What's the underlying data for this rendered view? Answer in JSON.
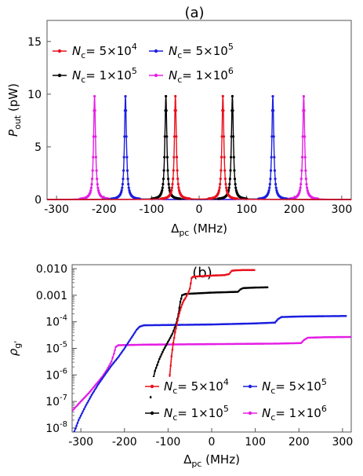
{
  "chart_data": [
    {
      "type": "line",
      "panel_label": "(a)",
      "xlabel": "Δpc (MHz)",
      "xlabel_main": "Δ",
      "xlabel_sub": "pc",
      "xlabel_unit": " (MHz)",
      "ylabel": "Pout (pW)",
      "ylabel_main": "P",
      "ylabel_sub": "out",
      "ylabel_unit": " (pW)",
      "xlim": [
        -320,
        320
      ],
      "ylim": [
        0,
        17
      ],
      "xticks": [
        "-300",
        "-200",
        "-100",
        "0",
        "100",
        "200",
        "300"
      ],
      "xtick_values": [
        -300,
        -200,
        -100,
        0,
        100,
        200,
        300
      ],
      "yticks": [
        "0",
        "5",
        "10",
        "15"
      ],
      "ytick_values": [
        0,
        5,
        10,
        15
      ],
      "peak_height": 9.8,
      "series": [
        {
          "name": "Nc= 5×10^4",
          "legend": {
            "pre": "N",
            "sub": "c",
            "eq": "= 5×10",
            "sup": "4"
          },
          "color": "#e8101c",
          "peaks": [
            -50,
            50
          ],
          "width": 5
        },
        {
          "name": "Nc= 5×10^5",
          "legend": {
            "pre": "N",
            "sub": "c",
            "eq": "= 5×10",
            "sup": "5"
          },
          "color": "#1b1fe0",
          "peaks": [
            -155,
            155
          ],
          "width": 5
        },
        {
          "name": "Nc= 1×10^5",
          "legend": {
            "pre": "N",
            "sub": "c",
            "eq": "= 1×10",
            "sup": "5"
          },
          "color": "#000000",
          "peaks": [
            -70,
            70
          ],
          "width": 5
        },
        {
          "name": "Nc= 1×10^6",
          "legend": {
            "pre": "N",
            "sub": "c",
            "eq": "= 1×10",
            "sup": "6"
          },
          "color": "#e51ee5",
          "peaks": [
            -220,
            220
          ],
          "width": 5
        }
      ]
    },
    {
      "type": "line",
      "panel_label": "(b)",
      "xlabel": "Δpc (MHz)",
      "xlabel_main": "Δ",
      "xlabel_sub": "pc",
      "xlabel_unit": " (MHz)",
      "ylabel": "ρg'",
      "ylabel_main": "ρ",
      "ylabel_sub": "g'",
      "y_scale": "log",
      "xlim": [
        -320,
        320
      ],
      "ylim_log10": [
        -8.15,
        -1.85
      ],
      "xticks": [
        "-300",
        "-200",
        "-100",
        "0",
        "100",
        "200",
        "300"
      ],
      "xtick_values": [
        -300,
        -200,
        -100,
        0,
        100,
        200,
        300
      ],
      "yticks": [
        {
          "label": "0.010",
          "log": -2
        },
        {
          "label": "0.001",
          "log": -3
        },
        {
          "label": "10",
          "sup": "-4",
          "log": -4
        },
        {
          "label": "10",
          "sup": "-5",
          "log": -5
        },
        {
          "label": "10",
          "sup": "-6",
          "log": -6
        },
        {
          "label": "10",
          "sup": "-7",
          "log": -7
        },
        {
          "label": "10",
          "sup": "-8",
          "log": -8
        }
      ],
      "series": [
        {
          "name": "Nc= 5×10^4",
          "legend": {
            "pre": "N",
            "sub": "c",
            "eq": "= 5×10",
            "sup": "4"
          },
          "color": "#e8101c",
          "points": [
            [
              -100,
              -6.7
            ],
            [
              -96,
              -6.0
            ],
            [
              -92,
              -5.3
            ],
            [
              -88,
              -4.8
            ],
            [
              -84,
              -4.4
            ],
            [
              -80,
              -4.1
            ],
            [
              -76,
              -3.8
            ],
            [
              -72,
              -3.55
            ],
            [
              -68,
              -3.35
            ],
            [
              -64,
              -3.2
            ],
            [
              -60,
              -3.1
            ],
            [
              -55,
              -2.95
            ],
            [
              -50,
              -2.75
            ],
            [
              -46,
              -2.35
            ],
            [
              -42,
              -2.3
            ],
            [
              -20,
              -2.28
            ],
            [
              0,
              -2.26
            ],
            [
              30,
              -2.24
            ],
            [
              40,
              -2.2
            ],
            [
              46,
              -2.08
            ],
            [
              55,
              -2.06
            ],
            [
              75,
              -2.05
            ],
            [
              100,
              -2.05
            ]
          ]
        },
        {
          "name": "Nc= 5×10^5",
          "legend": {
            "pre": "N",
            "sub": "c",
            "eq": "= 5×10",
            "sup": "5"
          },
          "color": "#1b1fe0",
          "points": [
            [
              -320,
              -8.35
            ],
            [
              -305,
              -7.7
            ],
            [
              -290,
              -7.2
            ],
            [
              -275,
              -6.75
            ],
            [
              -260,
              -6.35
            ],
            [
              -245,
              -6.0
            ],
            [
              -230,
              -5.65
            ],
            [
              -215,
              -5.35
            ],
            [
              -200,
              -5.0
            ],
            [
              -190,
              -4.75
            ],
            [
              -180,
              -4.5
            ],
            [
              -172,
              -4.3
            ],
            [
              -165,
              -4.18
            ],
            [
              -155,
              -4.13
            ],
            [
              -100,
              -4.12
            ],
            [
              0,
              -4.1
            ],
            [
              100,
              -4.06
            ],
            [
              145,
              -4.03
            ],
            [
              152,
              -3.9
            ],
            [
              160,
              -3.82
            ],
            [
              200,
              -3.8
            ],
            [
              250,
              -3.79
            ],
            [
              310,
              -3.78
            ]
          ]
        },
        {
          "name": "Nc= 1×10^5",
          "legend": {
            "pre": "N",
            "sub": "c",
            "eq": "= 1×10",
            "sup": "5"
          },
          "color": "#000000",
          "points": [
            [
              -140,
              -6.85
            ],
            [
              -136,
              -6.3
            ],
            [
              -130,
              -5.85
            ],
            [
              -120,
              -5.4
            ],
            [
              -110,
              -5.05
            ],
            [
              -100,
              -4.75
            ],
            [
              -90,
              -4.45
            ],
            [
              -82,
              -4.1
            ],
            [
              -76,
              -3.7
            ],
            [
              -72,
              -3.25
            ],
            [
              -68,
              -3.0
            ],
            [
              -60,
              -2.95
            ],
            [
              0,
              -2.9
            ],
            [
              60,
              -2.87
            ],
            [
              66,
              -2.78
            ],
            [
              72,
              -2.73
            ],
            [
              100,
              -2.71
            ],
            [
              130,
              -2.7
            ]
          ]
        },
        {
          "name": "Nc= 1×10^6",
          "legend": {
            "pre": "N",
            "sub": "c",
            "eq": "= 1×10",
            "sup": "6"
          },
          "color": "#e51ee5",
          "points": [
            [
              -320,
              -7.35
            ],
            [
              -300,
              -7.0
            ],
            [
              -280,
              -6.65
            ],
            [
              -265,
              -6.35
            ],
            [
              -250,
              -6.05
            ],
            [
              -240,
              -5.8
            ],
            [
              -230,
              -5.5
            ],
            [
              -224,
              -5.2
            ],
            [
              -220,
              -4.95
            ],
            [
              -214,
              -4.88
            ],
            [
              -150,
              -4.86
            ],
            [
              0,
              -4.84
            ],
            [
              150,
              -4.82
            ],
            [
              205,
              -4.8
            ],
            [
              212,
              -4.68
            ],
            [
              220,
              -4.6
            ],
            [
              260,
              -4.58
            ],
            [
              320,
              -4.57
            ]
          ]
        }
      ]
    }
  ]
}
